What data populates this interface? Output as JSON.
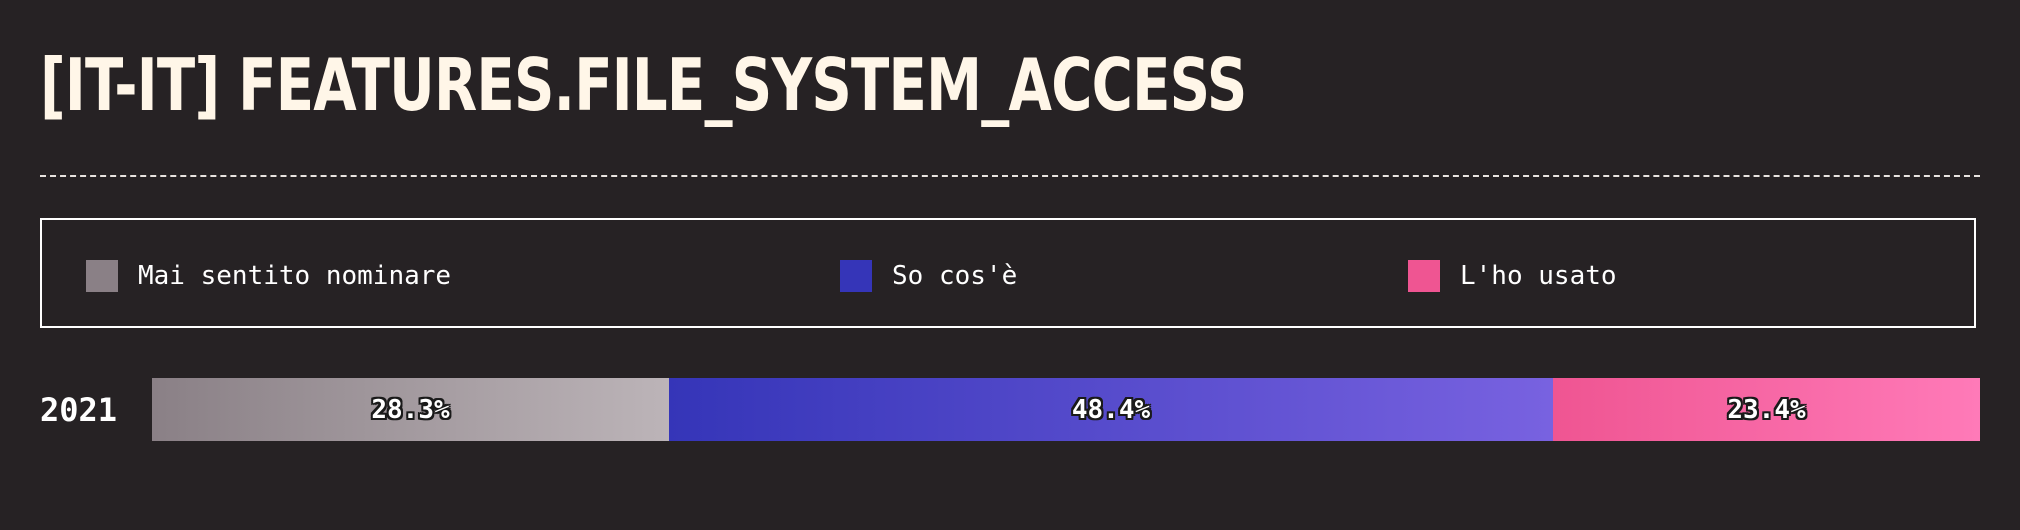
{
  "title": "[IT-IT] FEATURES.FILE_SYSTEM_ACCESS",
  "legend": [
    {
      "label": "Mai sentito nominare",
      "color": "#8a8086"
    },
    {
      "label": "So cos'è",
      "color": "#3535b8"
    },
    {
      "label": "L'ho usato",
      "color": "#ef5592"
    }
  ],
  "chart_data": {
    "type": "bar",
    "orientation": "horizontal",
    "stacked": true,
    "normalized": true,
    "categories": [
      "2021"
    ],
    "series": [
      {
        "name": "Mai sentito nominare",
        "values": [
          28.3
        ],
        "labels": [
          "28.3%"
        ],
        "color_start": "#8a8086",
        "color_end": "#bcb4b8"
      },
      {
        "name": "So cos'è",
        "values": [
          48.4
        ],
        "labels": [
          "48.4%"
        ],
        "color_start": "#3535b8",
        "color_end": "#7862e0"
      },
      {
        "name": "L'ho usato",
        "values": [
          23.4
        ],
        "labels": [
          "23.4%"
        ],
        "color_start": "#ef5592",
        "color_end": "#ff7ab8"
      }
    ],
    "legend_position": "top",
    "unit": "%"
  }
}
